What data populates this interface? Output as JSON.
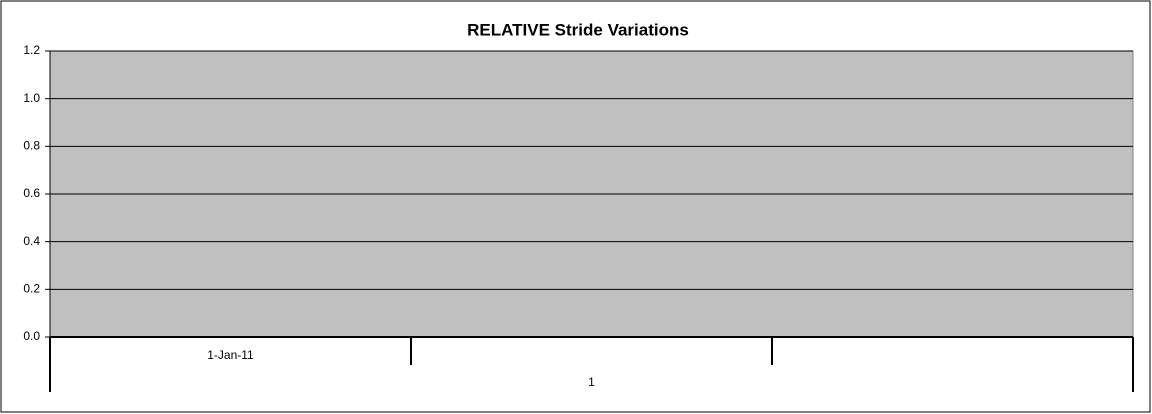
{
  "chart_data": {
    "type": "line",
    "title": "RELATIVE Stride Variations",
    "categories": [
      "1-Jan-11",
      null,
      null
    ],
    "category_groups": [
      "1"
    ],
    "series": [],
    "ylim": [
      0,
      1.2
    ],
    "yticks": [
      {
        "value": 0,
        "label": "0.0"
      },
      {
        "value": 0.2,
        "label": "0.2"
      },
      {
        "value": 0.4,
        "label": "0.4"
      },
      {
        "value": 0.6,
        "label": "0.6"
      },
      {
        "value": 0.8,
        "label": "0.8"
      },
      {
        "value": 1.0,
        "label": "1.0"
      },
      {
        "value": 1.2,
        "label": "1.2"
      }
    ],
    "grid": true,
    "plot_background": "#c0c0c0"
  }
}
